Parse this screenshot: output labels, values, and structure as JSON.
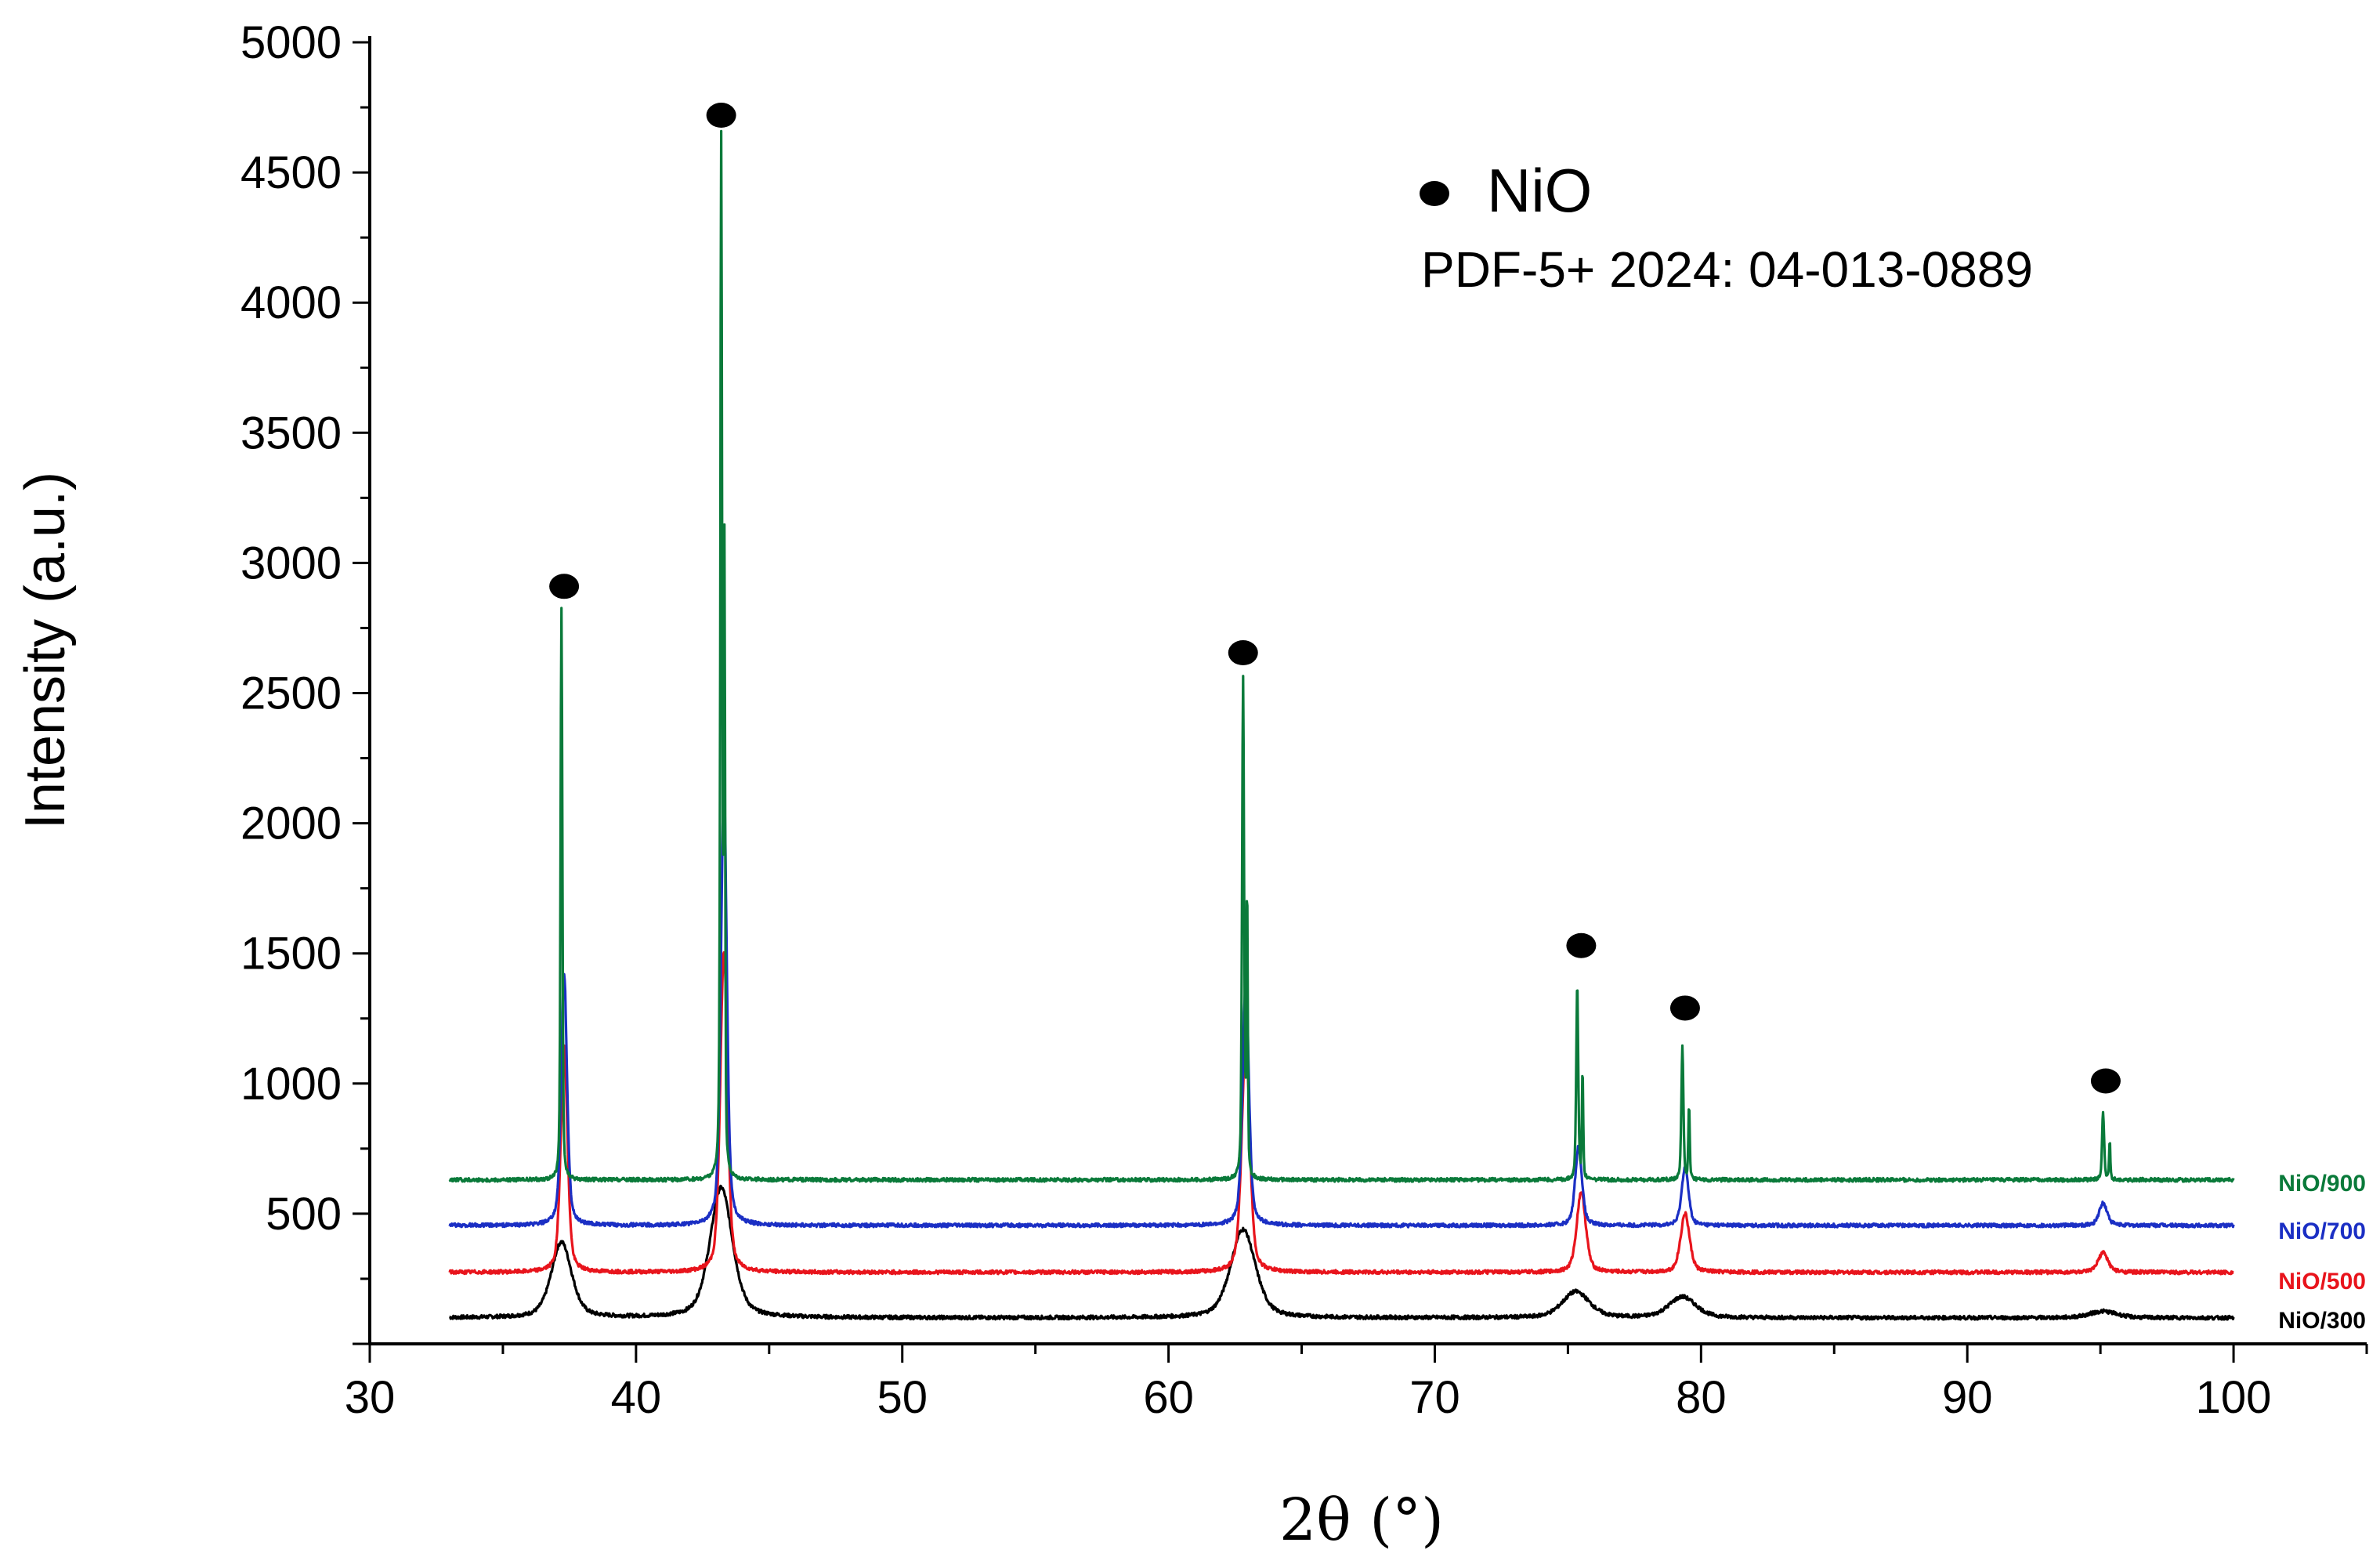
{
  "chart_data": {
    "type": "line",
    "title": "",
    "xlabel": "2θ (°)",
    "ylabel": "Intensity (a.u.)",
    "xlim": [
      30,
      105
    ],
    "ylim": [
      0,
      5000
    ],
    "x_ticks": [
      30,
      40,
      50,
      60,
      70,
      80,
      90,
      100
    ],
    "y_ticks": [
      500,
      1000,
      1500,
      2000,
      2500,
      3000,
      3500,
      4000,
      4500,
      5000
    ],
    "grid": false,
    "legend": {
      "marker": "filled-circle",
      "label": "NiO",
      "reference": "PDF-5+ 2024: 04-013-0889",
      "placement": "top-right"
    },
    "peak_markers": [
      {
        "x": 37.3,
        "y": 2910
      },
      {
        "x": 43.2,
        "y": 4720
      },
      {
        "x": 62.8,
        "y": 2655
      },
      {
        "x": 75.5,
        "y": 1530
      },
      {
        "x": 79.4,
        "y": 1290
      },
      {
        "x": 95.2,
        "y": 1010
      }
    ],
    "x_range": [
      33,
      100
    ],
    "series": [
      {
        "name": "NiO/300",
        "color": "#000000",
        "baseline": 100,
        "peaks": [
          [
            37.2,
            290,
            0.45
          ],
          [
            43.2,
            500,
            0.5
          ],
          [
            62.8,
            340,
            0.55
          ],
          [
            75.3,
            100,
            0.6
          ],
          [
            79.3,
            80,
            0.6
          ],
          [
            95.1,
            25,
            0.6
          ]
        ]
      },
      {
        "name": "NiO/500",
        "color": "#e8141c",
        "baseline": 275,
        "peaks": [
          [
            37.3,
            865,
            0.15
          ],
          [
            43.3,
            1235,
            0.16
          ],
          [
            62.9,
            885,
            0.18
          ],
          [
            75.5,
            310,
            0.2
          ],
          [
            79.4,
            225,
            0.2
          ],
          [
            95.1,
            75,
            0.22
          ]
        ]
      },
      {
        "name": "NiO/700",
        "color": "#1b2fc4",
        "baseline": 455,
        "peaks": [
          [
            37.3,
            965,
            0.13
          ],
          [
            43.3,
            1695,
            0.13
          ],
          [
            62.9,
            935,
            0.14
          ],
          [
            75.4,
            305,
            0.15
          ],
          [
            79.4,
            225,
            0.15
          ],
          [
            95.1,
            85,
            0.18
          ]
        ]
      },
      {
        "name": "NiO/900",
        "color": "#0a7a3a",
        "baseline": 630,
        "peaks": [
          [
            37.2,
            2190,
            0.04
          ],
          [
            43.2,
            3970,
            0.04
          ],
          [
            43.32,
            2330,
            0.03
          ],
          [
            62.8,
            1920,
            0.045
          ],
          [
            62.95,
            1080,
            0.03
          ],
          [
            75.35,
            750,
            0.045
          ],
          [
            75.55,
            410,
            0.03
          ],
          [
            79.3,
            520,
            0.045
          ],
          [
            79.55,
            290,
            0.03
          ],
          [
            95.1,
            265,
            0.045
          ],
          [
            95.35,
            145,
            0.03
          ]
        ]
      }
    ]
  }
}
